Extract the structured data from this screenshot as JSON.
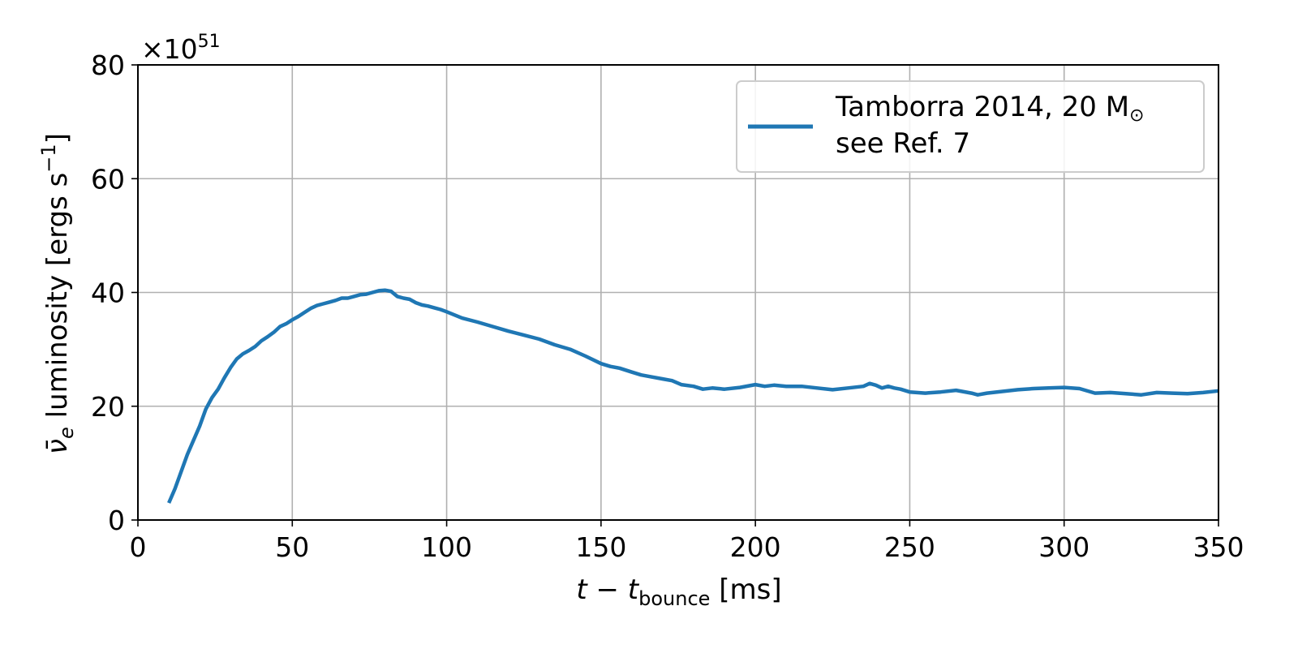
{
  "chart_data": {
    "type": "line",
    "xlim": [
      0,
      350
    ],
    "ylim": [
      0,
      80
    ],
    "x_ticks": [
      "0",
      "50",
      "100",
      "150",
      "200",
      "250",
      "300",
      "350"
    ],
    "y_ticks": [
      "0",
      "20",
      "40",
      "60",
      "80"
    ],
    "y_multiplier": {
      "base": "×10",
      "exponent": "51"
    },
    "xlabel": {
      "main": "t − t",
      "sub": "bounce",
      "unit": " [ms]"
    },
    "ylabel": {
      "symbol": "ν̄",
      "sub": "e",
      "main": " luminosity [ergs s",
      "sup": "−1",
      "end": "]"
    },
    "grid": true,
    "legend_position": "top-right",
    "colors": {
      "series": "#1f77b4",
      "grid": "#b0b0b0"
    },
    "series": [
      {
        "name_line1": "Tamborra 2014, 20 M",
        "name_symbol": "⊙",
        "name_line2": "see Ref. 7",
        "x": [
          10,
          12,
          14,
          16,
          18,
          20,
          22,
          24,
          26,
          28,
          30,
          32,
          34,
          36,
          38,
          40,
          42,
          44,
          46,
          48,
          50,
          52,
          54,
          56,
          58,
          60,
          62,
          64,
          66,
          68,
          70,
          72,
          74,
          76,
          78,
          80,
          82,
          84,
          86,
          88,
          90,
          92,
          94,
          96,
          98,
          100,
          105,
          110,
          115,
          120,
          125,
          130,
          135,
          140,
          145,
          150,
          153,
          156,
          160,
          163,
          166,
          170,
          173,
          176,
          180,
          183,
          186,
          190,
          195,
          200,
          203,
          206,
          210,
          215,
          220,
          225,
          230,
          235,
          237,
          239,
          241,
          243,
          245,
          247,
          250,
          255,
          260,
          265,
          270,
          272,
          275,
          280,
          285,
          290,
          295,
          300,
          305,
          310,
          315,
          320,
          325,
          330,
          335,
          340,
          345,
          350
        ],
        "y": [
          3,
          5.5,
          8.5,
          11.5,
          14,
          16.5,
          19.5,
          21.5,
          23,
          25,
          26.8,
          28.3,
          29.2,
          29.8,
          30.5,
          31.5,
          32.2,
          33,
          34,
          34.5,
          35.2,
          35.8,
          36.5,
          37.2,
          37.7,
          38,
          38.3,
          38.6,
          39,
          39,
          39.3,
          39.6,
          39.7,
          40,
          40.3,
          40.4,
          40.2,
          39.3,
          39,
          38.8,
          38.2,
          37.8,
          37.6,
          37.3,
          37,
          36.6,
          35.5,
          34.8,
          34,
          33.2,
          32.5,
          31.8,
          30.8,
          30,
          28.8,
          27.5,
          27,
          26.7,
          26,
          25.5,
          25.2,
          24.8,
          24.5,
          23.8,
          23.5,
          23,
          23.2,
          23,
          23.3,
          23.8,
          23.5,
          23.7,
          23.5,
          23.5,
          23.2,
          22.9,
          23.2,
          23.5,
          24,
          23.7,
          23.2,
          23.5,
          23.2,
          23,
          22.5,
          22.3,
          22.5,
          22.8,
          22.3,
          22,
          22.3,
          22.6,
          22.9,
          23.1,
          23.2,
          23.3,
          23.1,
          22.3,
          22.4,
          22.2,
          22,
          22.4,
          22.3,
          22.2,
          22.4,
          22.7
        ]
      }
    ]
  }
}
